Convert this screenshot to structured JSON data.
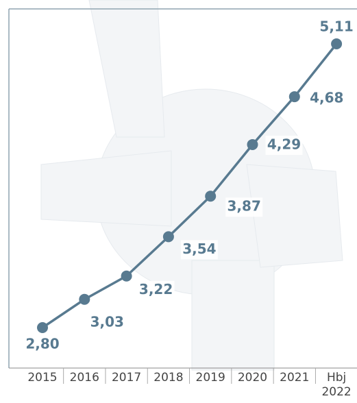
{
  "chart_data": {
    "type": "line",
    "categories": [
      "2015",
      "2016",
      "2017",
      "2018",
      "2019",
      "2020",
      "2021",
      "Hbj 2022"
    ],
    "values": [
      2.8,
      3.03,
      3.22,
      3.54,
      3.87,
      4.29,
      4.68,
      5.11
    ],
    "value_labels": [
      "2,80",
      "3,03",
      "3,22",
      "3,54",
      "3,87",
      "4,29",
      "4,68",
      "5,11"
    ],
    "color": "#587a90"
  }
}
